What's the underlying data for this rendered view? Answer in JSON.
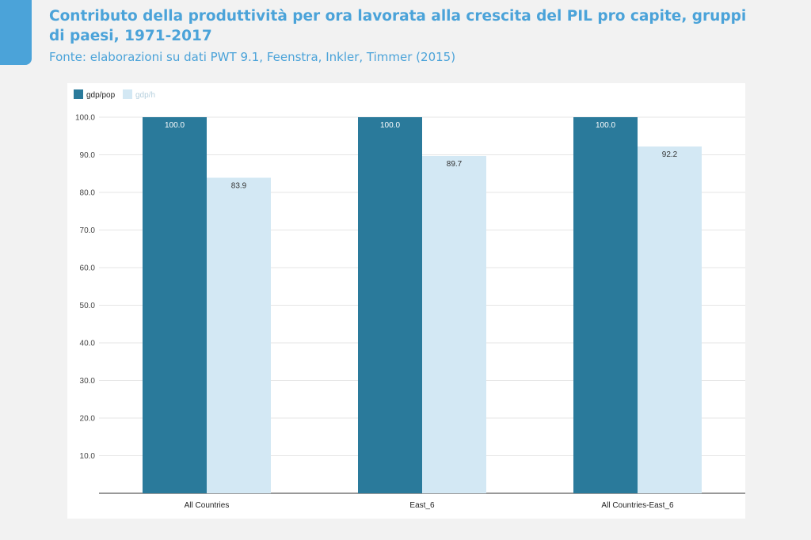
{
  "header": {
    "title": "Contributo della produttività per ora lavorata alla crescita del PIL pro capite, gruppi di paesi, 1971-2017",
    "subtitle": "Fonte: elaborazioni su dati PWT 9.1, Feenstra, Inkler, Timmer (2015)"
  },
  "colors": {
    "accent": "#4ba3d9",
    "series_dark": "#2a7a9b",
    "series_light": "#d3e8f4"
  },
  "chart_data": {
    "type": "bar",
    "title": "",
    "xlabel": "",
    "ylabel": "",
    "categories": [
      "All Countries",
      "East_6",
      "All Countries-East_6"
    ],
    "series": [
      {
        "name": "gdp/pop",
        "values": [
          100.0,
          100.0,
          100.0
        ],
        "labels": [
          "100.0",
          "100.0",
          "100.0"
        ],
        "color": "#2a7a9b"
      },
      {
        "name": "gdp/h",
        "values": [
          83.9,
          89.7,
          92.2
        ],
        "labels": [
          "83.9",
          "89.7",
          "92.2"
        ],
        "color": "#d3e8f4"
      }
    ],
    "yticks": [
      "10.0",
      "20.0",
      "30.0",
      "40.0",
      "50.0",
      "60.0",
      "70.0",
      "80.0",
      "90.0",
      "100.0"
    ],
    "ylim": [
      0,
      100
    ],
    "grid": true,
    "legend_position": "top-left"
  }
}
